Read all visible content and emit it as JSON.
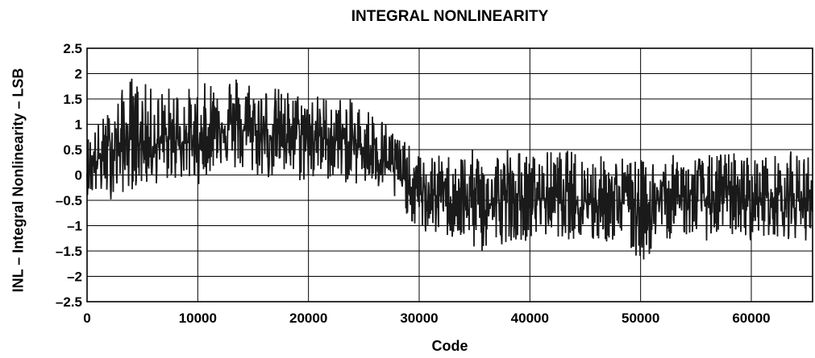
{
  "chart_data": {
    "type": "line",
    "title": "INTEGRAL NONLINEARITY",
    "xlabel": "Code",
    "ylabel": "INL – Integral Nonlinearity – LSB",
    "xlim": [
      0,
      65535
    ],
    "ylim": [
      -2.5,
      2.5
    ],
    "grid": true,
    "x_ticks": [
      0,
      10000,
      20000,
      30000,
      40000,
      50000,
      60000
    ],
    "x_tick_labels": [
      "0",
      "10000",
      "20000",
      "30000",
      "40000",
      "50000",
      "60000"
    ],
    "y_ticks": [
      2.5,
      2,
      1.5,
      1,
      0.5,
      0,
      -0.5,
      -1,
      -1.5,
      -2,
      -2.5
    ],
    "y_tick_labels": [
      "2.5",
      "2",
      "1.5",
      "1",
      "0.5",
      "0",
      "–0.5",
      "–1",
      "–1.5",
      "–2",
      "–2.5"
    ],
    "line_color": "#1a1a1a",
    "series": [
      {
        "x": [
          0,
          2000,
          4000,
          6000,
          8000,
          10000,
          12000,
          14000,
          16000,
          18000,
          20000,
          22000,
          24000,
          26000,
          27000,
          28000,
          29000,
          30000,
          32000,
          34000,
          36000,
          38000,
          40000,
          42000,
          44000,
          46000,
          48000,
          50000,
          52000,
          54000,
          56000,
          58000,
          60000,
          62000,
          64000,
          65535
        ],
        "y": [
          0.1,
          0.5,
          0.7,
          0.6,
          0.7,
          0.6,
          1.0,
          0.9,
          0.8,
          0.8,
          0.8,
          0.7,
          0.6,
          0.5,
          0.3,
          0.1,
          -0.2,
          -0.4,
          -0.4,
          -0.5,
          -0.6,
          -0.5,
          -0.5,
          -0.4,
          -0.5,
          -0.5,
          -0.5,
          -0.6,
          -0.5,
          -0.4,
          -0.5,
          -0.4,
          -0.5,
          -0.4,
          -0.5,
          -0.4
        ],
        "y_min": [
          -0.4,
          -0.5,
          -0.3,
          -0.2,
          -0.1,
          -0.2,
          0.2,
          0.0,
          -0.1,
          -0.1,
          -0.2,
          -0.1,
          -0.2,
          -0.3,
          -0.4,
          -0.6,
          -0.8,
          -1.2,
          -1.2,
          -1.4,
          -1.6,
          -1.3,
          -1.3,
          -1.2,
          -1.3,
          -1.4,
          -1.3,
          -1.8,
          -1.3,
          -1.2,
          -1.3,
          -1.2,
          -1.3,
          -1.2,
          -1.3,
          -1.3
        ],
        "y_max": [
          0.8,
          1.3,
          2.0,
          1.7,
          1.8,
          1.7,
          2.1,
          2.0,
          1.8,
          1.7,
          1.6,
          1.6,
          1.5,
          1.3,
          1.1,
          0.9,
          0.6,
          0.4,
          0.4,
          0.5,
          0.5,
          0.6,
          0.4,
          0.5,
          0.5,
          0.4,
          0.4,
          0.3,
          0.4,
          0.4,
          0.4,
          0.5,
          0.4,
          0.4,
          0.5,
          0.4
        ]
      }
    ]
  }
}
